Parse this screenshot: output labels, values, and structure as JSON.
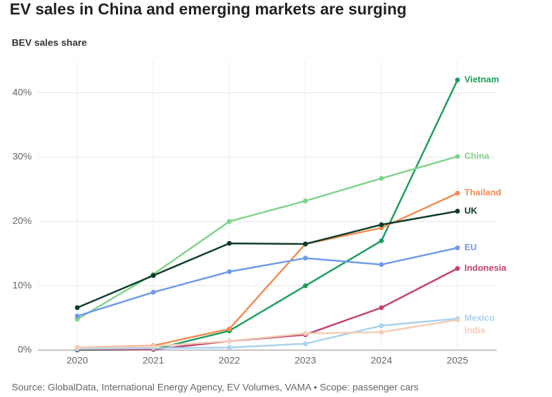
{
  "chart_data": {
    "type": "line",
    "title": "EV sales in China and emerging markets are surging",
    "subtitle": "BEV sales share",
    "source": "Source: GlobalData, International Energy Agency, EV Volumes, VAMA • Scope: passenger cars",
    "categories": [
      "2020",
      "2021",
      "2022",
      "2023",
      "2024",
      "2025"
    ],
    "ylim": [
      0,
      45
    ],
    "yticks": [
      {
        "value": 0,
        "label": "0%"
      },
      {
        "value": 10,
        "label": "10%"
      },
      {
        "value": 20,
        "label": "20%"
      },
      {
        "value": 30,
        "label": "30%"
      },
      {
        "value": 40,
        "label": "40%"
      }
    ],
    "grid": true,
    "series": [
      {
        "name": "Vietnam",
        "color": "#1a9e5c",
        "values": [
          0,
          0.1,
          3,
          10,
          17,
          42
        ]
      },
      {
        "name": "China",
        "color": "#7fd48a",
        "values": [
          4.8,
          11.8,
          20,
          23.2,
          26.7,
          30.1
        ]
      },
      {
        "name": "Thailand",
        "color": "#f28c52",
        "values": [
          0.4,
          0.7,
          3.3,
          16.5,
          19,
          24.4
        ]
      },
      {
        "name": "UK",
        "color": "#0e3b2a",
        "values": [
          6.6,
          11.6,
          16.6,
          16.5,
          19.5,
          21.6
        ]
      },
      {
        "name": "EU",
        "color": "#6f9be8",
        "values": [
          5.3,
          9,
          12.2,
          14.3,
          13.3,
          15.9
        ]
      },
      {
        "name": "Indonesia",
        "color": "#c2416f",
        "values": [
          0.1,
          0.1,
          1.4,
          2.4,
          6.6,
          12.7
        ]
      },
      {
        "name": "Mexico",
        "color": "#a9d2f0",
        "values": [
          0.2,
          0.3,
          0.4,
          1,
          3.8,
          4.9
        ]
      },
      {
        "name": "India",
        "color": "#f3cdb5",
        "values": [
          0.4,
          0.6,
          1.4,
          2.6,
          2.8,
          4.7
        ]
      }
    ]
  }
}
